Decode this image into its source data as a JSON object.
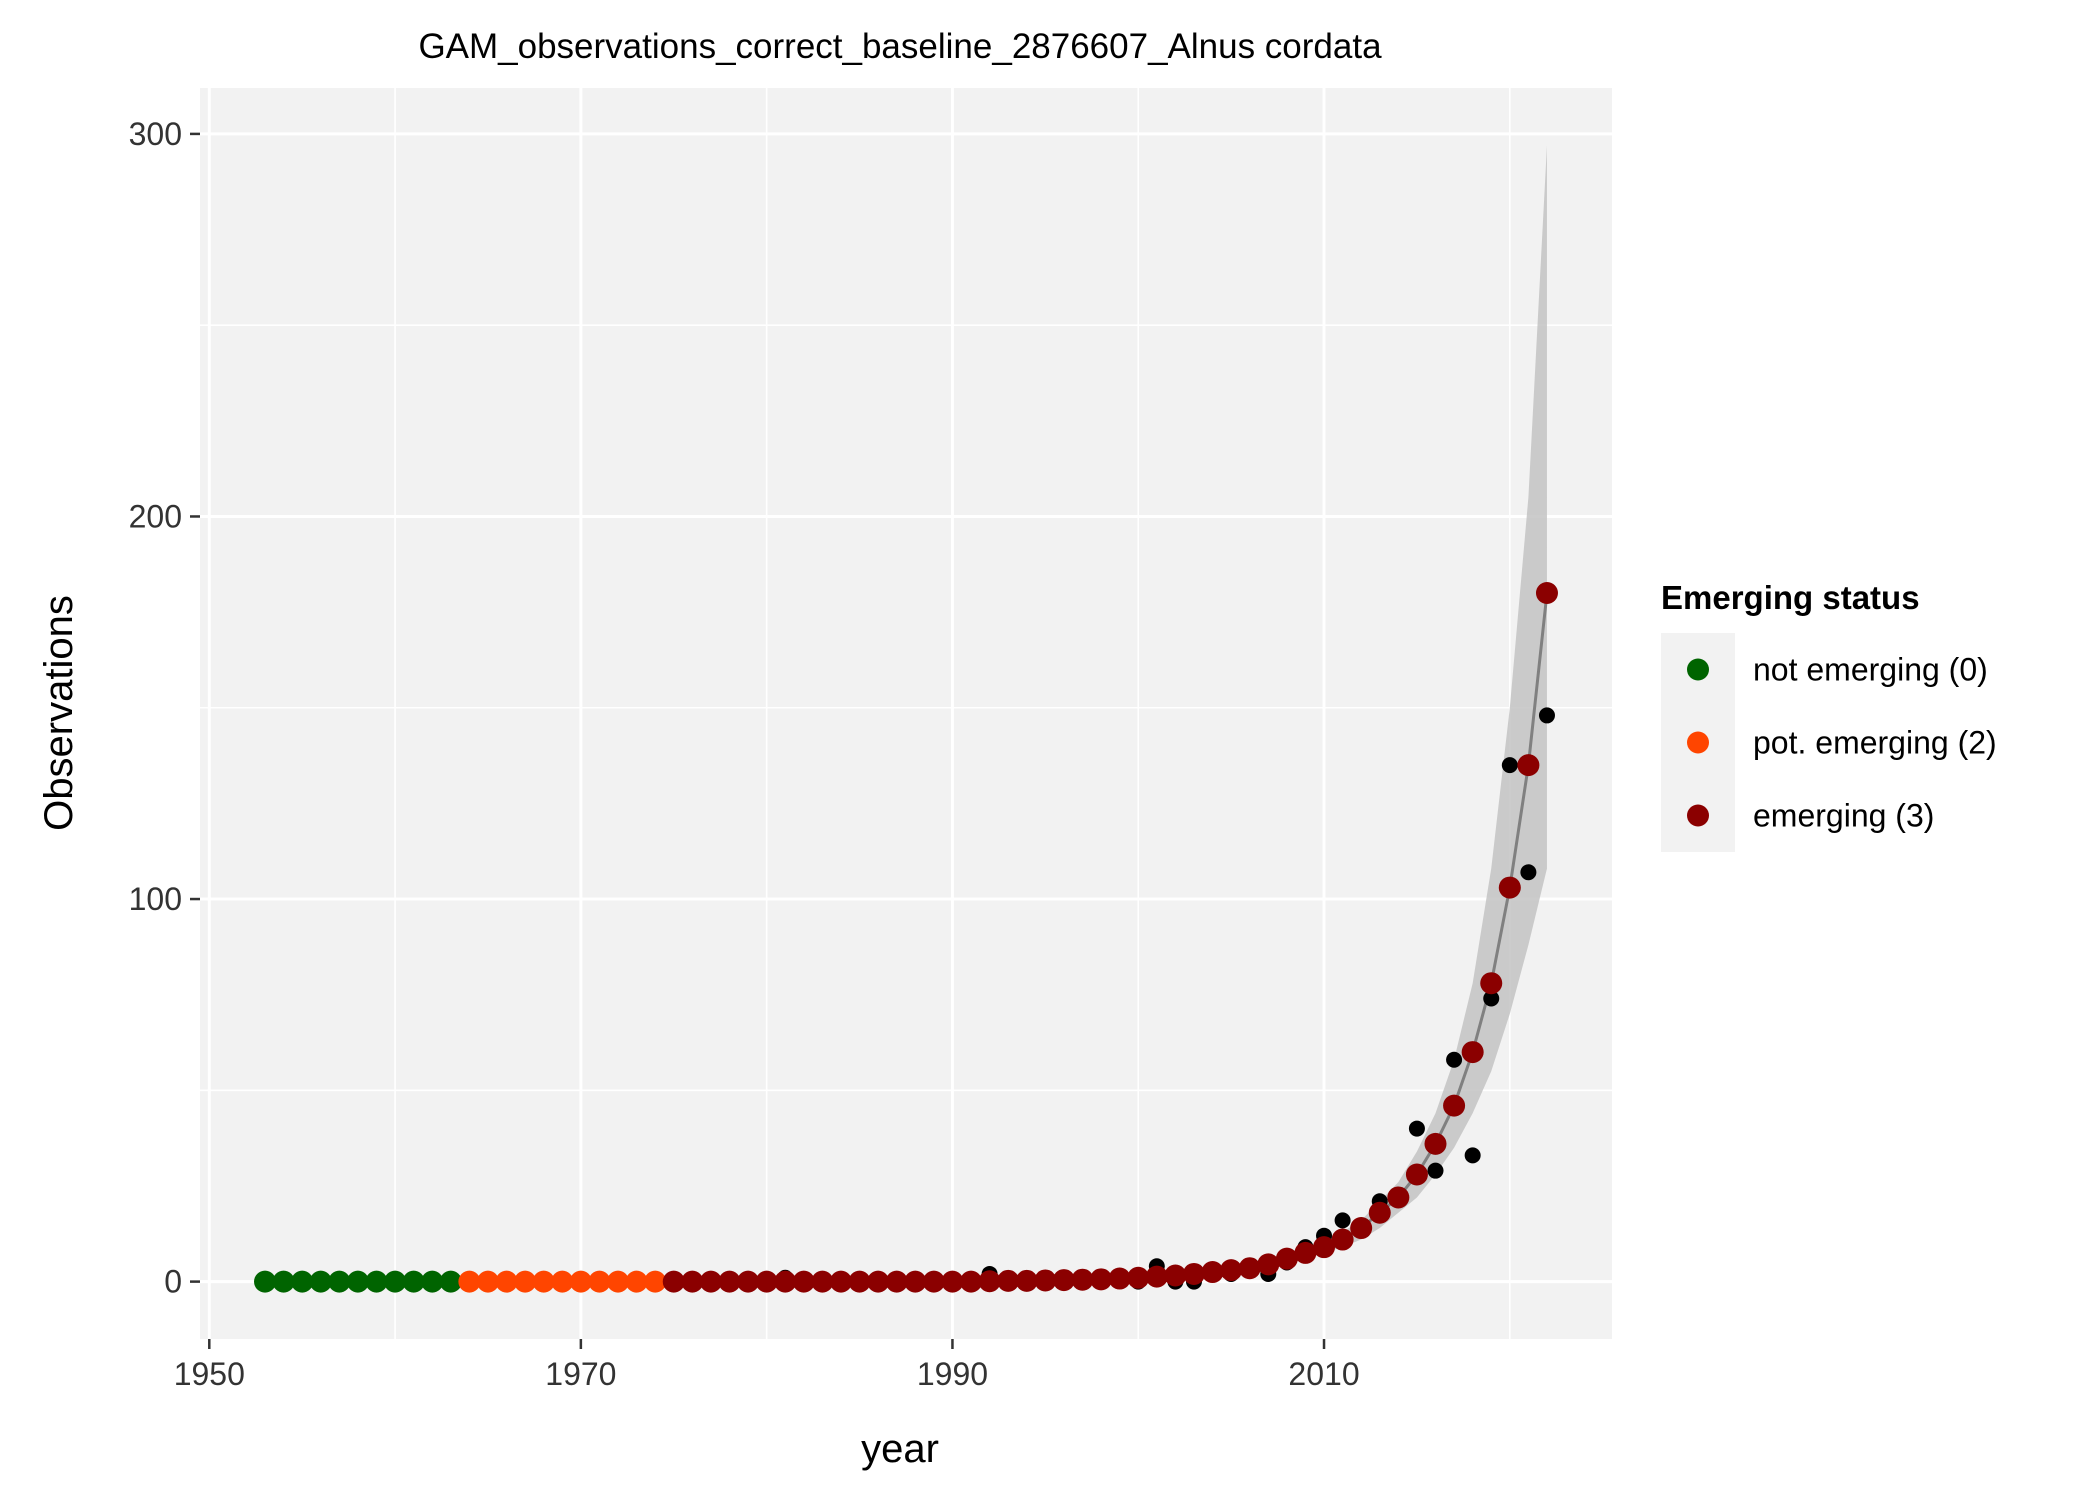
{
  "chart_data": {
    "type": "scatter",
    "title": "GAM_observations_correct_baseline_2876607_Alnus cordata",
    "xlabel": "year",
    "ylabel": "Observations",
    "xlim": [
      1949.5,
      2025.5
    ],
    "ylim": [
      -15,
      312
    ],
    "x_ticks": [
      1950,
      1970,
      1990,
      2010
    ],
    "x_tick_labels": [
      "1950",
      "1970",
      "1990",
      "2010"
    ],
    "y_ticks": [
      0,
      100,
      200,
      300
    ],
    "y_tick_labels": [
      "0",
      "100",
      "200",
      "300"
    ],
    "grid": true,
    "legend": {
      "title": "Emerging status",
      "placement": "right",
      "entries": [
        {
          "label": "not emerging (0)",
          "color": "#006400"
        },
        {
          "label": "pot. emerging (2)",
          "color": "#FF4500"
        },
        {
          "label": "emerging (3)",
          "color": "#8B0000"
        }
      ]
    },
    "colors": {
      "panel_background": "#F2F2F2",
      "grid": "#FFFFFF",
      "observed_points": "#000000",
      "fit_line": "#808080",
      "ribbon": "#C3C3C3"
    },
    "observed": {
      "x": [
        1953,
        1954,
        1955,
        1956,
        1957,
        1958,
        1959,
        1960,
        1961,
        1962,
        1963,
        1964,
        1965,
        1966,
        1967,
        1968,
        1969,
        1970,
        1971,
        1972,
        1973,
        1974,
        1975,
        1976,
        1977,
        1978,
        1979,
        1980,
        1981,
        1982,
        1983,
        1984,
        1985,
        1986,
        1987,
        1988,
        1989,
        1990,
        1991,
        1992,
        1993,
        1994,
        1995,
        1996,
        1997,
        1998,
        1999,
        2000,
        2001,
        2002,
        2003,
        2004,
        2005,
        2006,
        2007,
        2008,
        2009,
        2010,
        2011,
        2012,
        2013,
        2014,
        2015,
        2016,
        2017,
        2018,
        2019,
        2020,
        2021,
        2022
      ],
      "y": [
        0,
        0,
        0,
        0,
        0,
        0,
        0,
        0,
        0,
        0,
        0,
        0,
        0,
        0,
        0,
        0,
        0,
        0,
        0,
        0,
        0,
        0,
        0,
        0,
        0,
        0,
        0,
        0,
        1,
        0,
        0,
        0,
        0,
        0,
        0,
        0,
        0,
        0,
        0,
        2,
        0,
        0,
        0,
        1,
        1,
        1,
        1,
        0,
        4,
        0,
        0,
        2,
        2,
        3,
        2,
        5,
        9,
        12,
        16,
        14,
        21,
        22,
        40,
        29,
        58,
        33,
        74,
        135,
        107,
        148
      ]
    },
    "fitted": {
      "x": [
        1953,
        1954,
        1955,
        1956,
        1957,
        1958,
        1959,
        1960,
        1961,
        1962,
        1963,
        1964,
        1965,
        1966,
        1967,
        1968,
        1969,
        1970,
        1971,
        1972,
        1973,
        1974,
        1975,
        1976,
        1977,
        1978,
        1979,
        1980,
        1981,
        1982,
        1983,
        1984,
        1985,
        1986,
        1987,
        1988,
        1989,
        1990,
        1991,
        1992,
        1993,
        1994,
        1995,
        1996,
        1997,
        1998,
        1999,
        2000,
        2001,
        2002,
        2003,
        2004,
        2005,
        2006,
        2007,
        2008,
        2009,
        2010,
        2011,
        2012,
        2013,
        2014,
        2015,
        2016,
        2017,
        2018,
        2019,
        2020,
        2021,
        2022
      ],
      "y": [
        0,
        0,
        0,
        0,
        0,
        0,
        0,
        0,
        0,
        0,
        0,
        0,
        0,
        0,
        0,
        0,
        0,
        0,
        0,
        0,
        0,
        0,
        0,
        0,
        0,
        0,
        0,
        0,
        0,
        0,
        0,
        0,
        0,
        0,
        0,
        0,
        0,
        0,
        0,
        0.1,
        0.2,
        0.2,
        0.3,
        0.4,
        0.5,
        0.6,
        0.8,
        1,
        1.3,
        1.6,
        2,
        2.5,
        3,
        3.5,
        4.5,
        6,
        7.5,
        9,
        11,
        14,
        18,
        22,
        28,
        36,
        46,
        60,
        78,
        103,
        135,
        180
      ],
      "status": [
        0,
        0,
        0,
        0,
        0,
        0,
        0,
        0,
        0,
        0,
        0,
        2,
        2,
        2,
        2,
        2,
        2,
        2,
        2,
        2,
        2,
        2,
        3,
        3,
        3,
        3,
        3,
        3,
        3,
        3,
        3,
        3,
        3,
        3,
        3,
        3,
        3,
        3,
        3,
        3,
        3,
        3,
        3,
        3,
        3,
        3,
        3,
        3,
        3,
        3,
        3,
        3,
        3,
        3,
        3,
        3,
        3,
        3,
        3,
        3,
        3,
        3,
        3,
        3,
        3,
        3,
        3,
        3,
        3,
        3
      ]
    },
    "ribbon": {
      "x": [
        2008,
        2009,
        2010,
        2011,
        2012,
        2013,
        2014,
        2015,
        2016,
        2017,
        2018,
        2019,
        2020,
        2021,
        2022
      ],
      "lower": [
        4.5,
        6,
        7.5,
        9,
        11,
        14,
        18,
        22,
        28,
        35,
        44,
        55,
        70,
        88,
        108
      ],
      "upper": [
        7.5,
        9,
        11,
        13,
        16,
        21,
        26,
        34,
        44,
        58,
        78,
        108,
        150,
        205,
        297
      ]
    }
  }
}
